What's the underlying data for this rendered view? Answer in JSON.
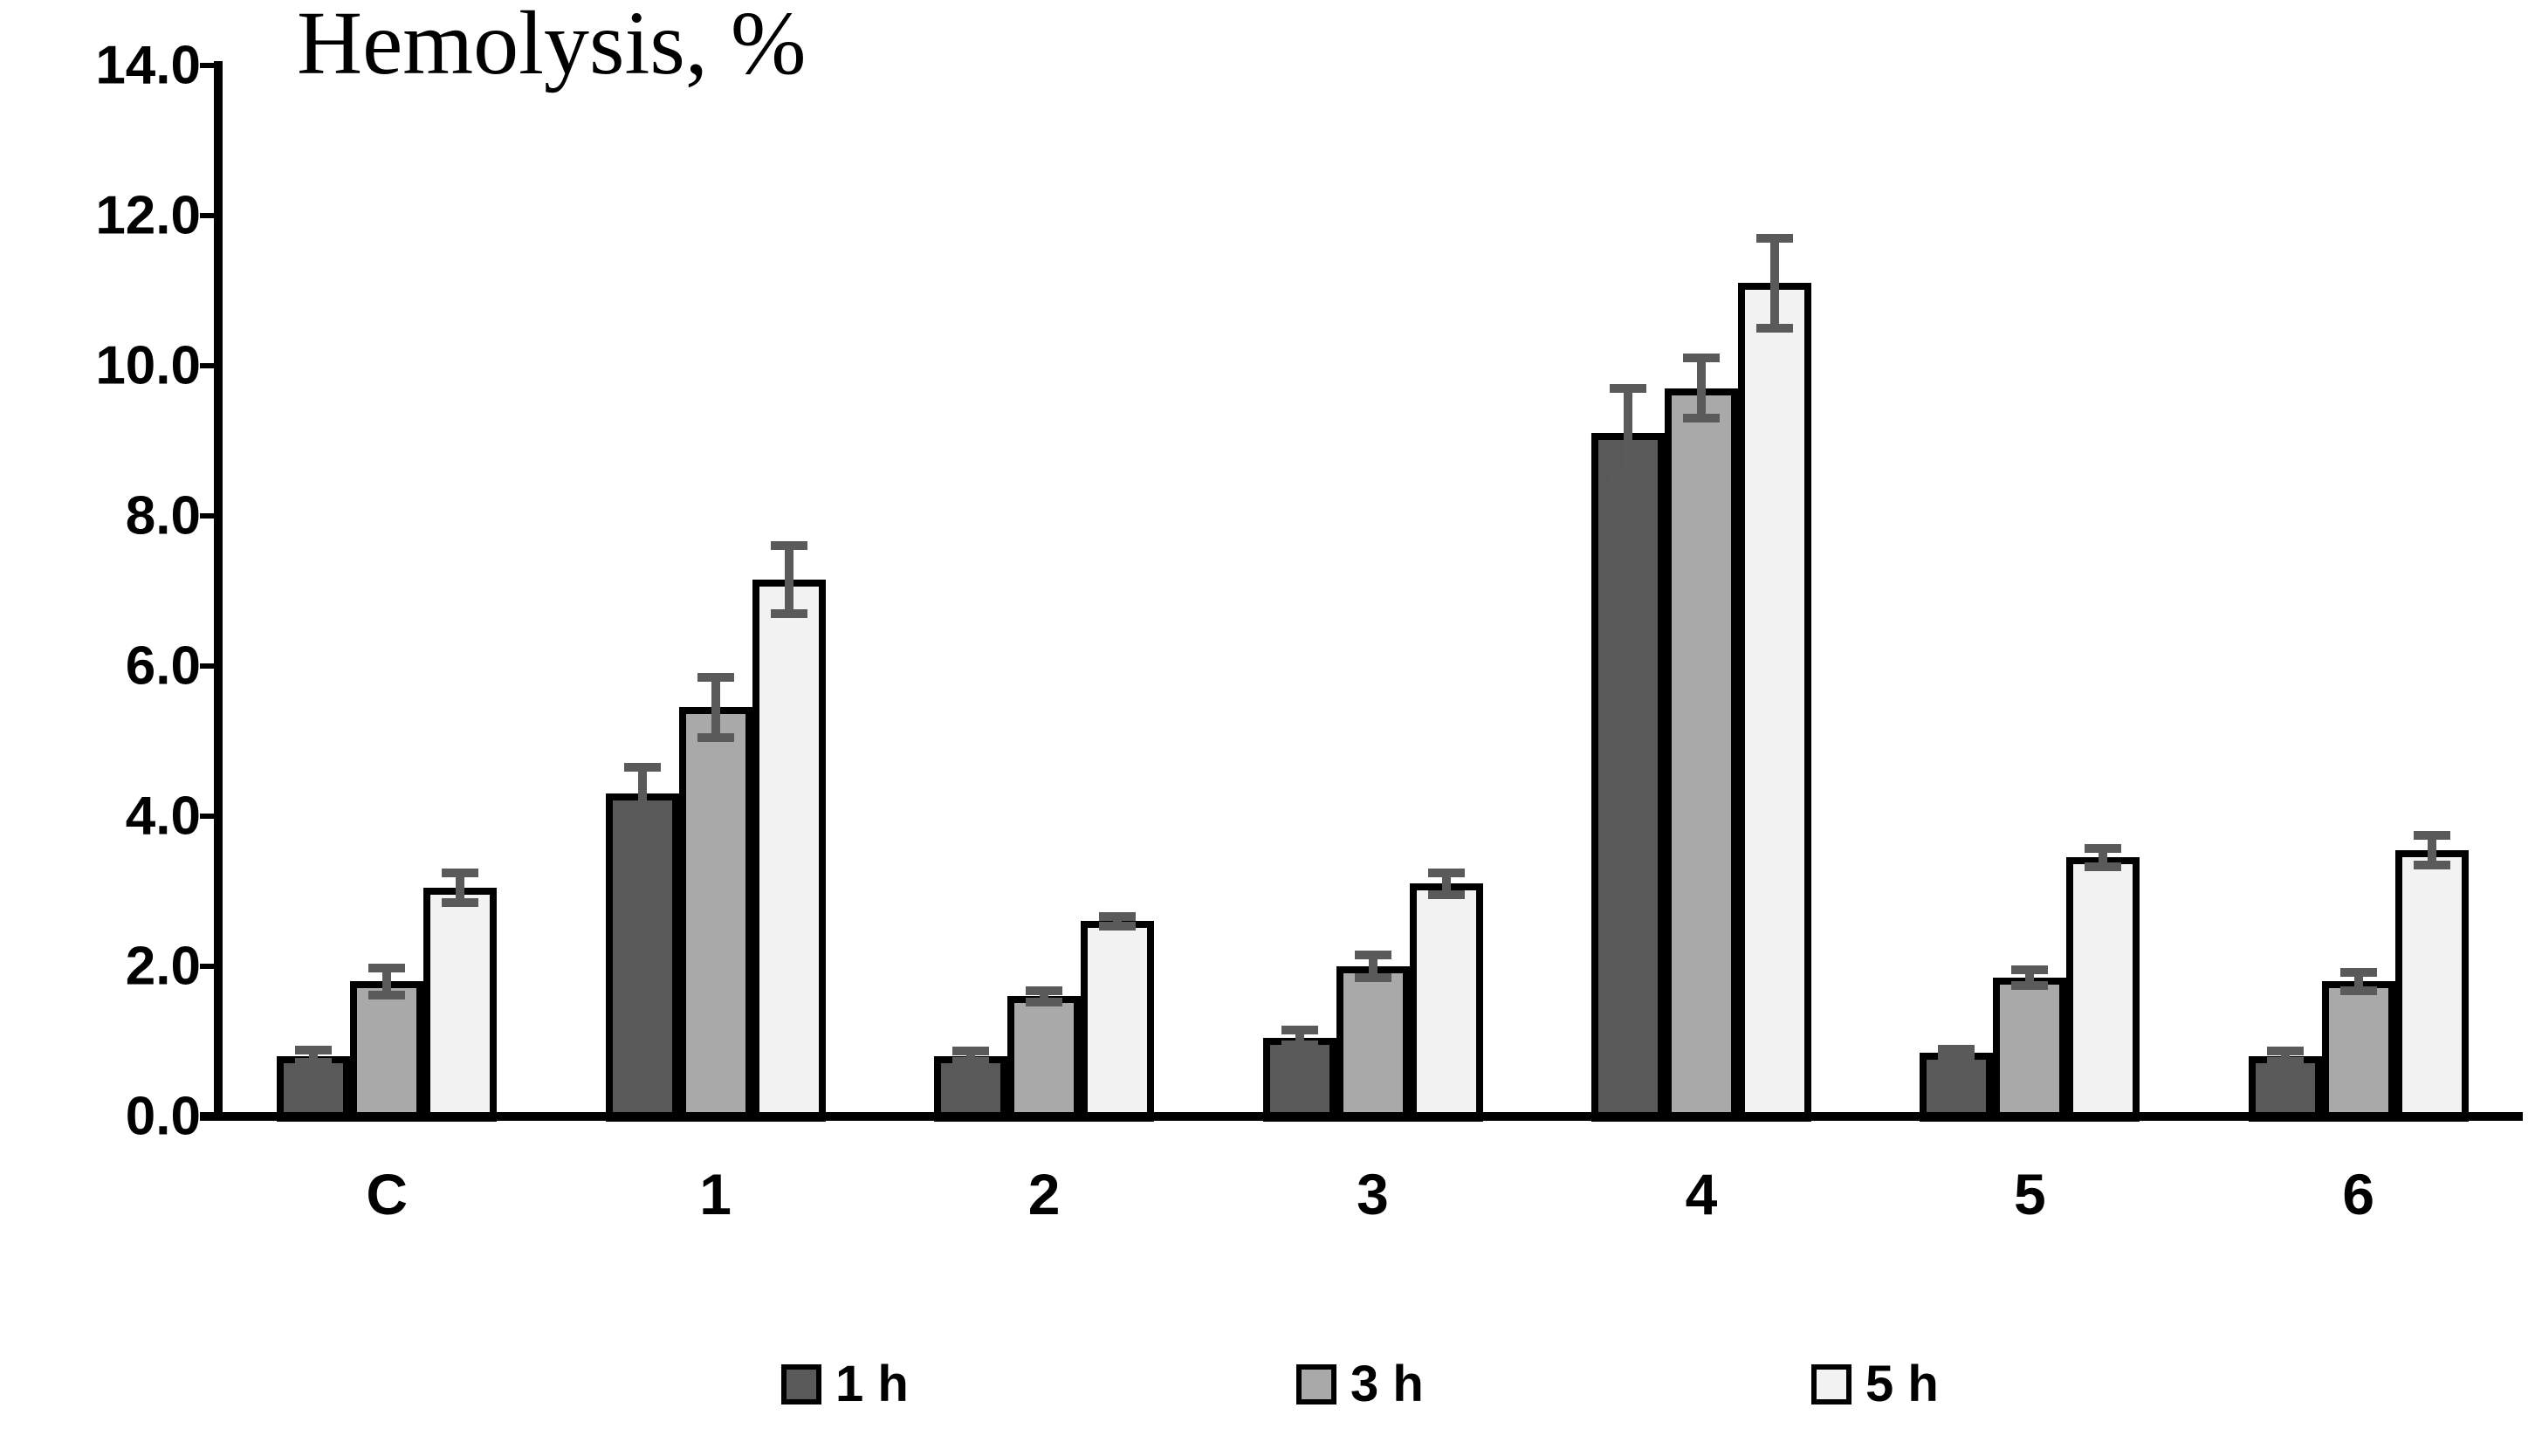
{
  "chart_data": {
    "type": "bar",
    "title": "Hemolysis, %",
    "categories": [
      "C",
      "1",
      "2",
      "3",
      "4",
      "5",
      "6"
    ],
    "series": [
      {
        "name": "1 h",
        "color": "#595959",
        "values": [
          0.8,
          4.3,
          0.8,
          1.05,
          9.1,
          0.85,
          0.8
        ],
        "errors": [
          0.08,
          0.35,
          0.07,
          0.1,
          0.6,
          0.05,
          0.07
        ]
      },
      {
        "name": "3 h",
        "color": "#a9a9a9",
        "values": [
          1.8,
          5.45,
          1.6,
          2.0,
          9.7,
          1.85,
          1.8
        ],
        "errors": [
          0.18,
          0.4,
          0.08,
          0.15,
          0.4,
          0.1,
          0.12
        ]
      },
      {
        "name": "5 h",
        "color": "#f2f2f2",
        "values": [
          3.05,
          7.15,
          2.6,
          3.1,
          11.1,
          3.45,
          3.55
        ],
        "errors": [
          0.2,
          0.45,
          0.06,
          0.15,
          0.6,
          0.12,
          0.2
        ]
      }
    ],
    "xlabel": "",
    "ylabel": "",
    "ylim": [
      0,
      14
    ],
    "ytick_step": 2,
    "ytick_labels": [
      "0.0",
      "2.0",
      "4.0",
      "6.0",
      "8.0",
      "10.0",
      "12.0",
      "14.0"
    ],
    "grid": false,
    "legend_position": "bottom",
    "bar_border_color": "#000000",
    "error_bar_color": "#5a5a5a",
    "axis_color": "#000000",
    "background_color": "#ffffff"
  }
}
